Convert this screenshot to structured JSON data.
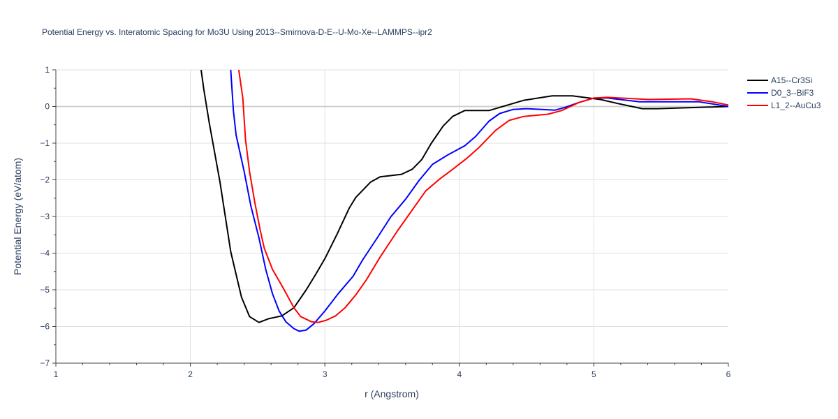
{
  "chart_data": {
    "type": "line",
    "title": "Potential Energy vs. Interatomic Spacing for Mo3U Using 2013--Smirnova-D-E--U-Mo-Xe--LAMMPS--ipr2",
    "xlabel": "r (Angstrom)",
    "ylabel": "Potential Energy (eV/atom)",
    "xlim": [
      1,
      6
    ],
    "ylim": [
      -7,
      1
    ],
    "xticks": [
      "1",
      "2",
      "3",
      "4",
      "5",
      "6"
    ],
    "yticks": [
      "1",
      "0",
      "−1",
      "−2",
      "−3",
      "−4",
      "−5",
      "−6",
      "−7"
    ],
    "grid": true,
    "legend_position": "right",
    "series": [
      {
        "name": "A15--Cr3Si",
        "color": "#000000",
        "x": [
          2.08,
          2.1,
          2.14,
          2.22,
          2.3,
          2.38,
          2.44,
          2.51,
          2.58,
          2.68,
          2.77,
          2.86,
          2.93,
          3.0,
          3.09,
          3.18,
          3.23,
          3.34,
          3.41,
          3.57,
          3.65,
          3.72,
          3.79,
          3.88,
          3.95,
          4.04,
          4.22,
          4.48,
          4.69,
          4.84,
          5.05,
          5.18,
          5.36,
          5.47,
          6.0
        ],
        "y": [
          1,
          0.46,
          -0.44,
          -2.06,
          -3.96,
          -5.2,
          -5.73,
          -5.89,
          -5.79,
          -5.71,
          -5.49,
          -5.01,
          -4.59,
          -4.15,
          -3.49,
          -2.78,
          -2.48,
          -2.06,
          -1.92,
          -1.85,
          -1.71,
          -1.45,
          -1.01,
          -0.53,
          -0.27,
          -0.11,
          -0.11,
          0.17,
          0.29,
          0.29,
          0.19,
          0.08,
          -0.06,
          -0.06,
          0
        ]
      },
      {
        "name": "D0_3--BiF3",
        "color": "#0000ff",
        "x": [
          2.3,
          2.32,
          2.34,
          2.4,
          2.45,
          2.51,
          2.56,
          2.61,
          2.66,
          2.71,
          2.77,
          2.81,
          2.86,
          2.92,
          3.0,
          3.1,
          3.21,
          3.28,
          3.39,
          3.49,
          3.6,
          3.7,
          3.8,
          3.91,
          4.04,
          4.12,
          4.22,
          4.3,
          4.4,
          4.5,
          4.71,
          4.79,
          4.89,
          5.0,
          5.1,
          5.34,
          5.78,
          6.0
        ],
        "y": [
          1,
          -0.11,
          -0.78,
          -1.77,
          -2.72,
          -3.58,
          -4.44,
          -5.1,
          -5.58,
          -5.87,
          -6.06,
          -6.13,
          -6.1,
          -5.92,
          -5.58,
          -5.1,
          -4.63,
          -4.19,
          -3.58,
          -3.01,
          -2.53,
          -2.02,
          -1.58,
          -1.33,
          -1.07,
          -0.82,
          -0.4,
          -0.19,
          -0.08,
          -0.06,
          -0.1,
          -0.02,
          0.11,
          0.23,
          0.23,
          0.13,
          0.13,
          0
        ]
      },
      {
        "name": "L1_2--AuCu3",
        "color": "#ff0000",
        "x": [
          2.36,
          2.39,
          2.41,
          2.44,
          2.48,
          2.52,
          2.55,
          2.61,
          2.69,
          2.77,
          2.82,
          2.9,
          2.95,
          3.01,
          3.08,
          3.15,
          3.23,
          3.31,
          3.41,
          3.54,
          3.65,
          3.75,
          3.86,
          3.93,
          4.05,
          4.14,
          4.27,
          4.37,
          4.48,
          4.66,
          4.76,
          4.89,
          5.0,
          5.1,
          5.41,
          5.72,
          5.88,
          6.0
        ],
        "y": [
          1,
          0.23,
          -0.91,
          -1.77,
          -2.63,
          -3.39,
          -3.87,
          -4.44,
          -4.95,
          -5.49,
          -5.73,
          -5.87,
          -5.89,
          -5.83,
          -5.71,
          -5.49,
          -5.14,
          -4.72,
          -4.11,
          -3.39,
          -2.82,
          -2.3,
          -1.96,
          -1.77,
          -1.43,
          -1.14,
          -0.65,
          -0.38,
          -0.27,
          -0.21,
          -0.11,
          0.11,
          0.23,
          0.25,
          0.19,
          0.21,
          0.13,
          0.04
        ]
      }
    ]
  }
}
